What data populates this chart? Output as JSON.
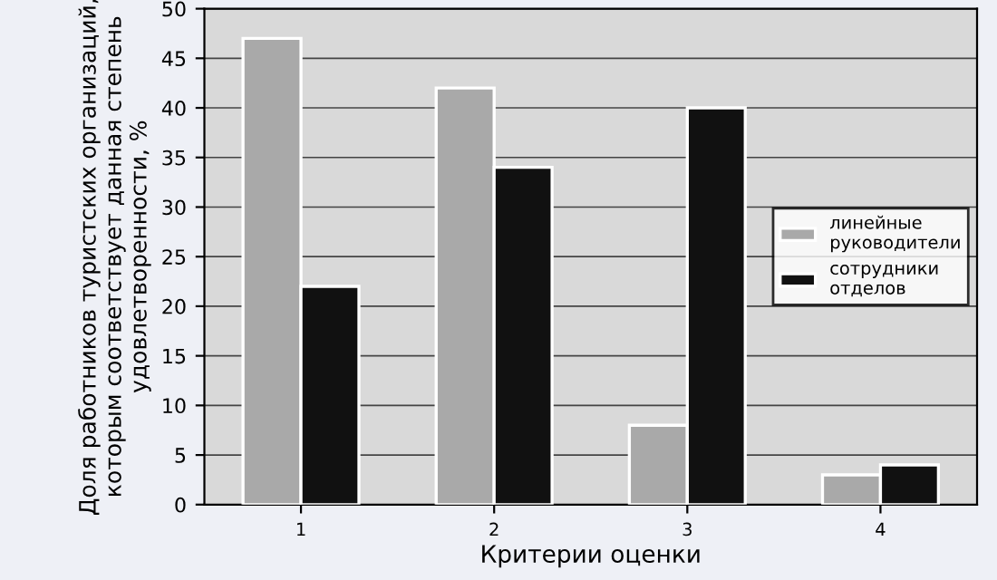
{
  "chart_data": {
    "type": "bar",
    "xlabel": "Критерии оценки",
    "ylabel": "Доля работников туристских организаций,\nкоторым соответствует данная степень\nудовлетворенности, %",
    "categories": [
      "1",
      "2",
      "3",
      "4"
    ],
    "series": [
      {
        "name": "линейные\nруководители",
        "color": "#a9a9a9",
        "values": [
          47,
          42,
          8,
          3
        ]
      },
      {
        "name": "сотрудники\nотделов",
        "color": "#111111",
        "values": [
          22,
          34,
          40,
          4
        ]
      }
    ],
    "ylim": [
      0,
      50
    ],
    "yticks": [
      0,
      5,
      10,
      15,
      20,
      25,
      30,
      35,
      40,
      45,
      50
    ],
    "grid": "y",
    "legend": "right"
  }
}
